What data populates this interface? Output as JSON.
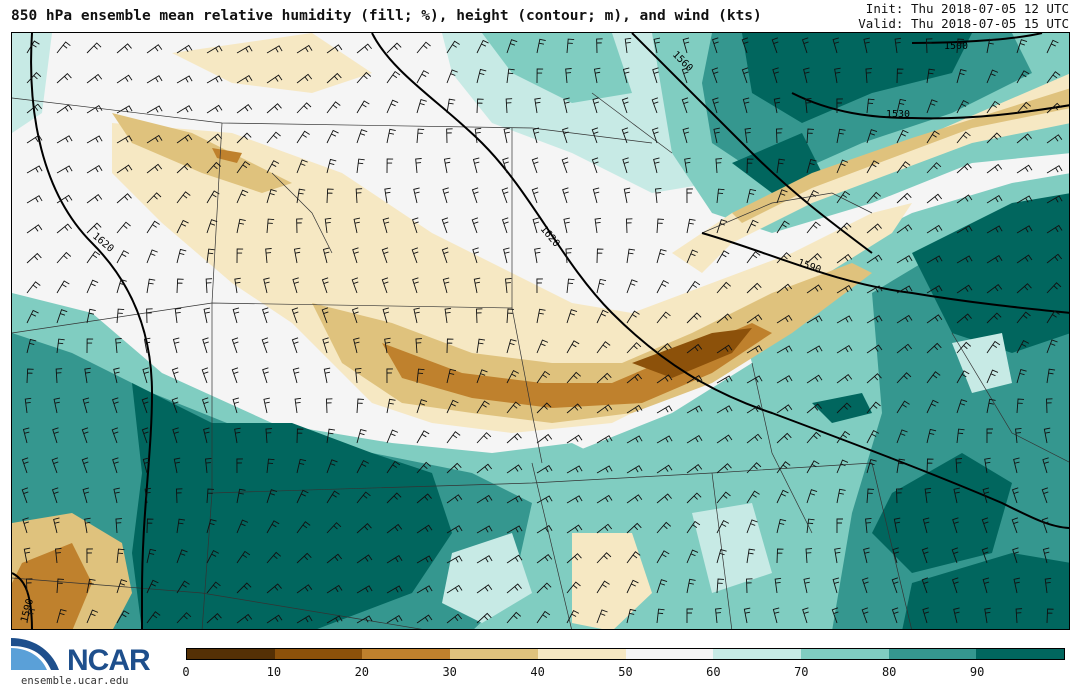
{
  "header": {
    "title": "850 hPa ensemble mean relative humidity (fill; %), height (contour; m), and wind (kts)",
    "init": "Init: Thu 2018-07-05 12 UTC",
    "valid": "Valid: Thu 2018-07-05 15 UTC"
  },
  "map": {
    "contour_labels": [
      "1500",
      "1530",
      "1560",
      "1590",
      "1620",
      "1620",
      "1590",
      "1590"
    ]
  },
  "colorbar": {
    "colors": [
      "#543005",
      "#8c510a",
      "#bf812d",
      "#dfc27d",
      "#f6e8c3",
      "#f5f5f5",
      "#c7eae5",
      "#80cdc1",
      "#35978f",
      "#01665e"
    ],
    "ticks": [
      "0",
      "10",
      "20",
      "30",
      "40",
      "50",
      "60",
      "70",
      "80",
      "90"
    ]
  },
  "logo": {
    "name": "NCAR",
    "url": "ensemble.ucar.edu"
  }
}
